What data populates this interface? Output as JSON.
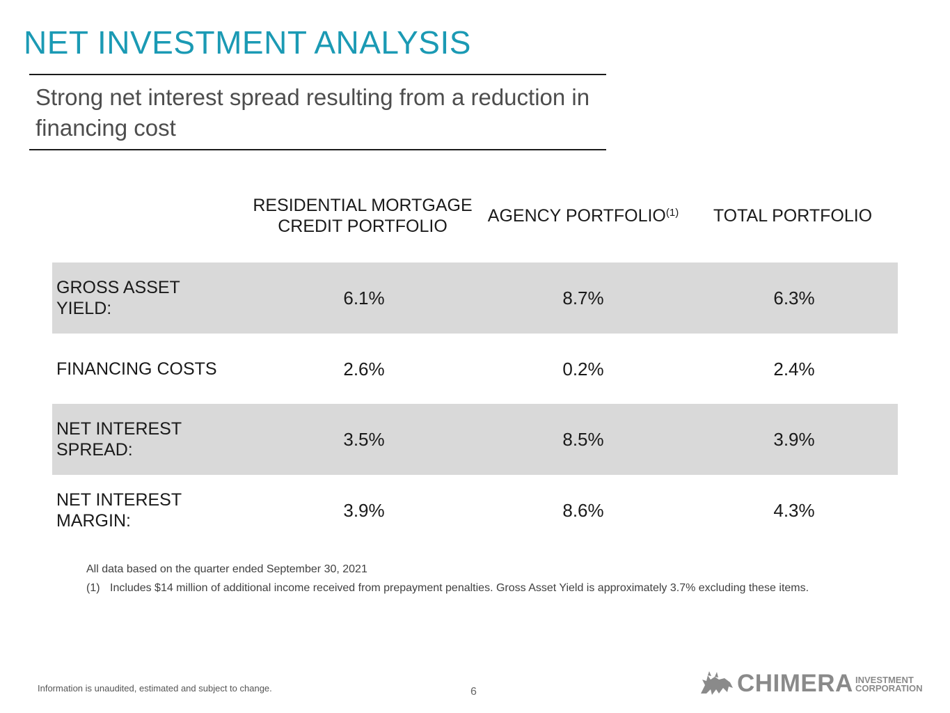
{
  "title": "NET INVESTMENT ANALYSIS",
  "subtitle": "Strong net interest spread resulting from a reduction in financing cost",
  "table": {
    "columns": [
      {
        "label": "RESIDENTIAL MORTGAGE CREDIT PORTFOLIO",
        "footnote": ""
      },
      {
        "label": "AGENCY PORTFOLIO",
        "footnote": "(1)"
      },
      {
        "label": "TOTAL PORTFOLIO",
        "footnote": ""
      }
    ],
    "rows": [
      {
        "label": "GROSS ASSET YIELD:",
        "values": [
          "6.1%",
          "8.7%",
          "6.3%"
        ]
      },
      {
        "label": "FINANCING COSTS",
        "values": [
          "2.6%",
          "0.2%",
          "2.4%"
        ]
      },
      {
        "label": "NET INTEREST SPREAD:",
        "values": [
          "3.5%",
          "8.5%",
          "3.9%"
        ]
      },
      {
        "label": "NET INTEREST MARGIN:",
        "values": [
          "3.9%",
          "8.6%",
          "4.3%"
        ]
      }
    ]
  },
  "notes": {
    "basis": "All data based on the quarter ended September 30, 2021",
    "footnote_1_marker": "(1)",
    "footnote_1_text": "Includes $14 million of additional income received from prepayment penalties. Gross Asset Yield is approximately 3.7% excluding these items."
  },
  "footer": {
    "disclaimer": "Information is unaudited, estimated and subject to change.",
    "page_number": "6"
  },
  "logo": {
    "name": "CHIMERA",
    "sub_line1": "INVESTMENT",
    "sub_line2": "CORPORATION"
  },
  "colors": {
    "title": "#1b9ab4",
    "row_shade": "#d9d9d9",
    "logo": "#8a8a8a"
  }
}
